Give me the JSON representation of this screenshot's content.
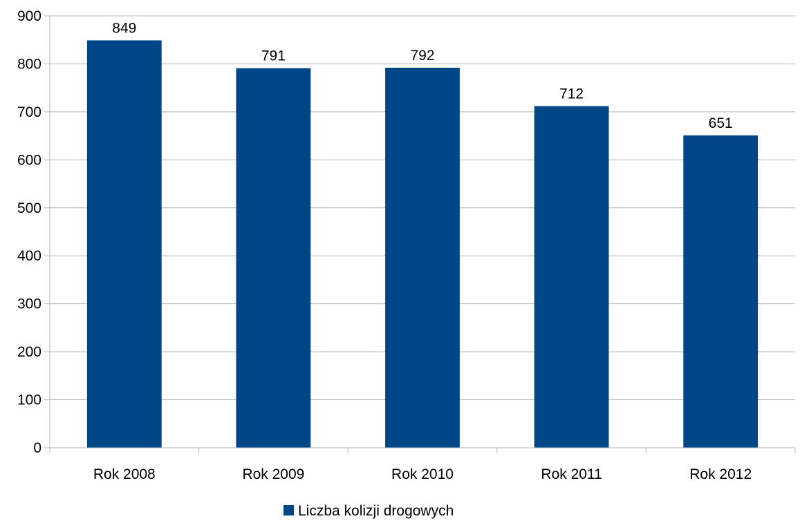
{
  "chart_data": {
    "type": "bar",
    "title": "",
    "xlabel": "",
    "ylabel": "",
    "categories": [
      "Rok 2008",
      "Rok 2009",
      "Rok 2010",
      "Rok 2011",
      "Rok 2012"
    ],
    "series": [
      {
        "name": "Liczba kolizji drogowych",
        "values": [
          849,
          791,
          792,
          712,
          651
        ],
        "color": "#004586"
      }
    ],
    "ylim": [
      0,
      900
    ],
    "yticks": [
      0,
      100,
      200,
      300,
      400,
      500,
      600,
      700,
      800,
      900
    ],
    "grid": true,
    "data_labels": true,
    "legend": {
      "position": "bottom"
    },
    "gridline_color": "#b3b3b3",
    "axis_color": "#b3b3b3"
  }
}
